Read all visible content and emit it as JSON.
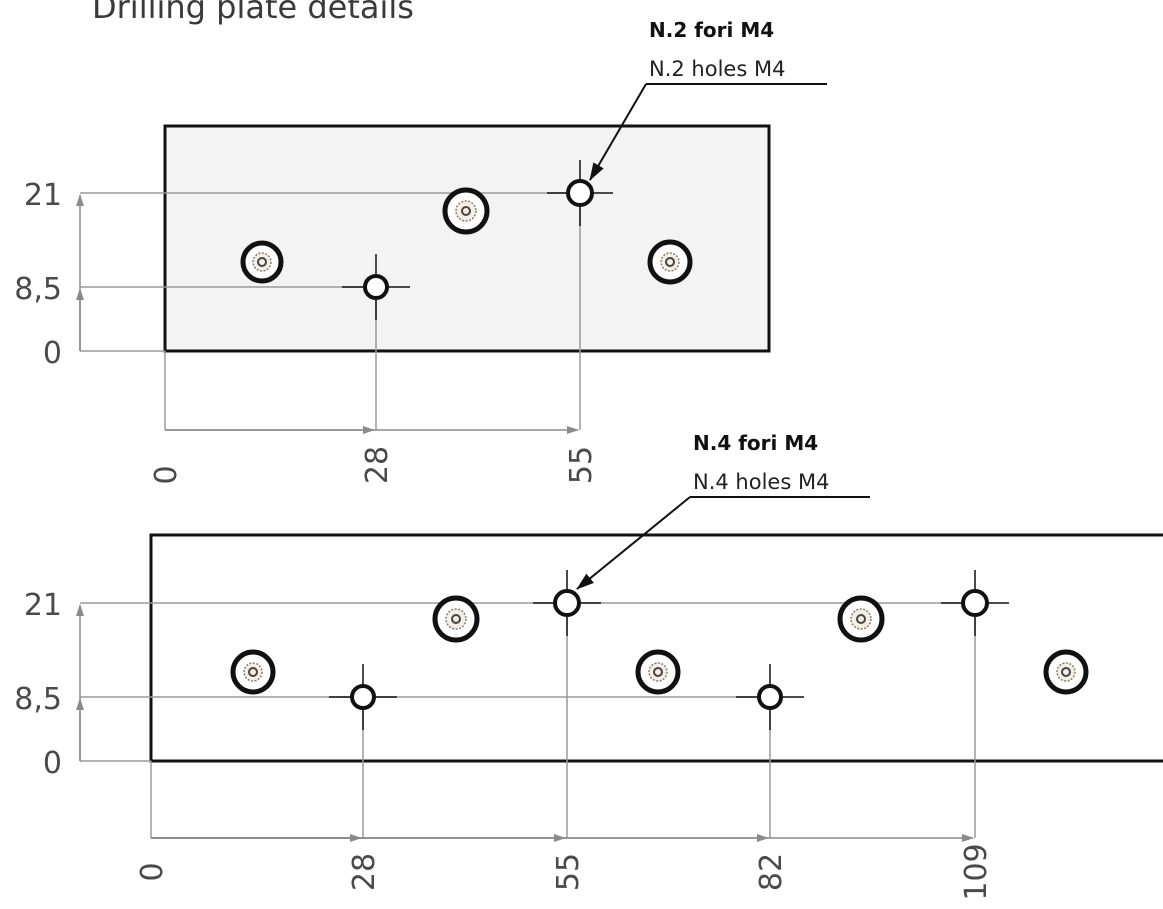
{
  "title": "Drilling plate details",
  "callout_top": {
    "bold": "N.2 fori M4",
    "regular": "N.2 holes M4"
  },
  "callout_bottom": {
    "bold": "N.4 fori M4",
    "regular": "N.4 holes M4"
  },
  "plate_top": {
    "y_labels": [
      "21",
      "8,5",
      "0"
    ],
    "x_labels": [
      "0",
      "28",
      "55"
    ]
  },
  "plate_bottom": {
    "y_labels": [
      "21",
      "8,5",
      "0"
    ],
    "x_labels": [
      "0",
      "28",
      "55",
      "82",
      "109"
    ]
  },
  "colors": {
    "outline": "#111111",
    "dimension": "#9a9a9a",
    "plate_fill": "#f3f3f3"
  }
}
